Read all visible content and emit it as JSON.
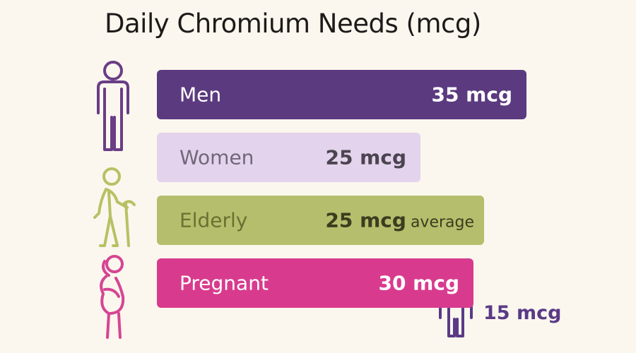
{
  "title": "Daily Chromium Needs (mcg)",
  "chart_data": {
    "type": "bar",
    "orientation": "horizontal",
    "title": "Daily Chromium Needs (mcg)",
    "unit": "mcg",
    "categories": [
      "Men",
      "Women",
      "Elderly",
      "Pregnant"
    ],
    "values": [
      35,
      25,
      25,
      30
    ],
    "value_labels": [
      "35 mcg",
      "25 mcg",
      "25 mcg",
      "30 mcg"
    ],
    "value_suffixes": [
      "",
      "",
      "average",
      ""
    ],
    "bar_colors": [
      "#5b3a7f",
      "#e4d3ec",
      "#b5be6c",
      "#d83b8e"
    ],
    "label_colors": [
      "#ffffff",
      "#6f6878",
      "#6b7032",
      "#ffffff"
    ],
    "value_colors": [
      "#ffffff",
      "#4a4450",
      "#3a3d1f",
      "#ffffff"
    ],
    "icon_colors": [
      "#6a3d86",
      "#b7c164",
      "#d64593"
    ],
    "icons": [
      "man-icon",
      "elderly-person-icon",
      "pregnant-woman-icon"
    ],
    "extra": {
      "label": "Children",
      "value": 15,
      "value_label": "15 mcg",
      "icon": "child-icon",
      "color": "#5b3a86"
    },
    "grid": false,
    "legend": "none"
  }
}
